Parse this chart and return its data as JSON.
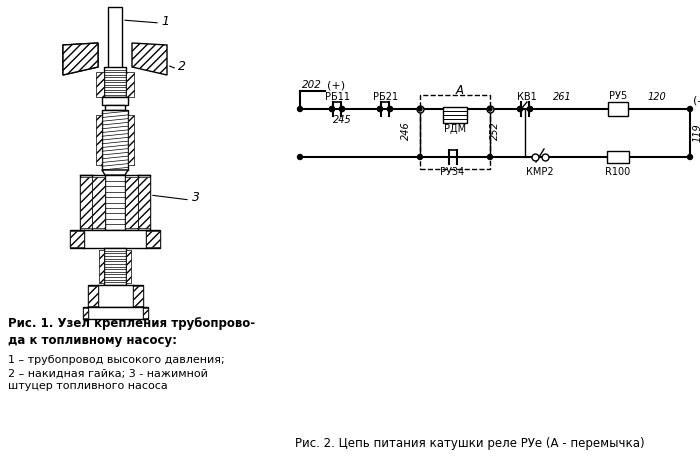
{
  "background_color": "#ffffff",
  "fig1_caption_bold": "Рис. 1. Узел крепления трубопрово-\nда к топливному насосу:",
  "fig1_items": "1 – трубопровод высокого давления;\n2 – накидная гайка; 3 - нажимной\nштуцер топливного насоса",
  "fig2_caption": "Рис. 2. Цепь питания катушки реле РУе (А - перемычка)",
  "text_color": "#000000",
  "line_color": "#000000"
}
